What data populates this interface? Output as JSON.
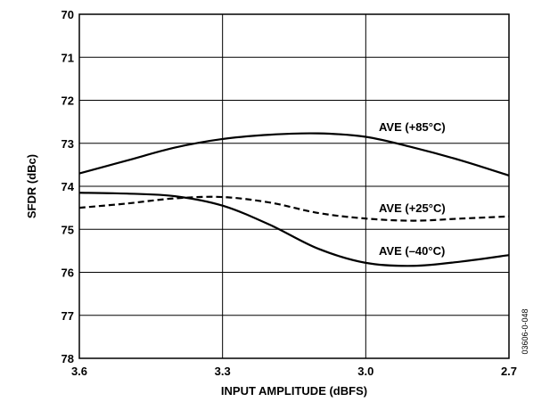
{
  "chart_data": {
    "type": "line",
    "xlabel": "INPUT AMPLITUDE (dBFS)",
    "ylabel": "SFDR (dBc)",
    "xlim": [
      3.6,
      2.7
    ],
    "ylim": [
      70,
      78
    ],
    "x_reversed": true,
    "y_reversed": true,
    "x_ticks": [
      "3.6",
      "3.3",
      "3.0",
      "2.7"
    ],
    "y_ticks": [
      "70",
      "71",
      "72",
      "73",
      "74",
      "75",
      "76",
      "77",
      "78"
    ],
    "grid": true,
    "series": [
      {
        "name": "AVE (+85°C)",
        "style": "solid",
        "x": [
          3.6,
          3.5,
          3.4,
          3.3,
          3.2,
          3.1,
          3.0,
          2.9,
          2.8,
          2.7
        ],
        "y": [
          73.7,
          73.4,
          73.1,
          72.9,
          72.8,
          72.77,
          72.85,
          73.1,
          73.4,
          73.75
        ]
      },
      {
        "name": "AVE (+25°C)",
        "style": "dashed",
        "x": [
          3.6,
          3.5,
          3.4,
          3.3,
          3.2,
          3.1,
          3.0,
          2.9,
          2.8,
          2.7
        ],
        "y": [
          74.5,
          74.4,
          74.28,
          74.25,
          74.38,
          74.62,
          74.75,
          74.8,
          74.75,
          74.7
        ]
      },
      {
        "name": "AVE (–40°C)",
        "style": "solid",
        "x": [
          3.6,
          3.5,
          3.4,
          3.3,
          3.2,
          3.1,
          3.0,
          2.9,
          2.8,
          2.7
        ],
        "y": [
          74.15,
          74.17,
          74.23,
          74.45,
          74.9,
          75.45,
          75.78,
          75.85,
          75.75,
          75.6
        ]
      }
    ],
    "annotations": [
      "AVE (+85°C)",
      "AVE (+25°C)",
      "AVE (–40°C)"
    ],
    "figure_id": "03606-0-048"
  }
}
